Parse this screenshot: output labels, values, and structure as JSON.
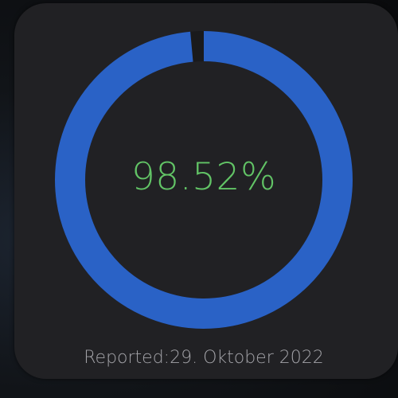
{
  "widget": {
    "value_text": "98.52%",
    "progress_percent": 98.52,
    "reported_label": "Reported:",
    "reported_date": "29. Oktober 2022"
  },
  "colors": {
    "ring": "#2a62c6",
    "value": "#62c466",
    "footer": "#a3a3a8",
    "widget_bg": "#212124"
  }
}
